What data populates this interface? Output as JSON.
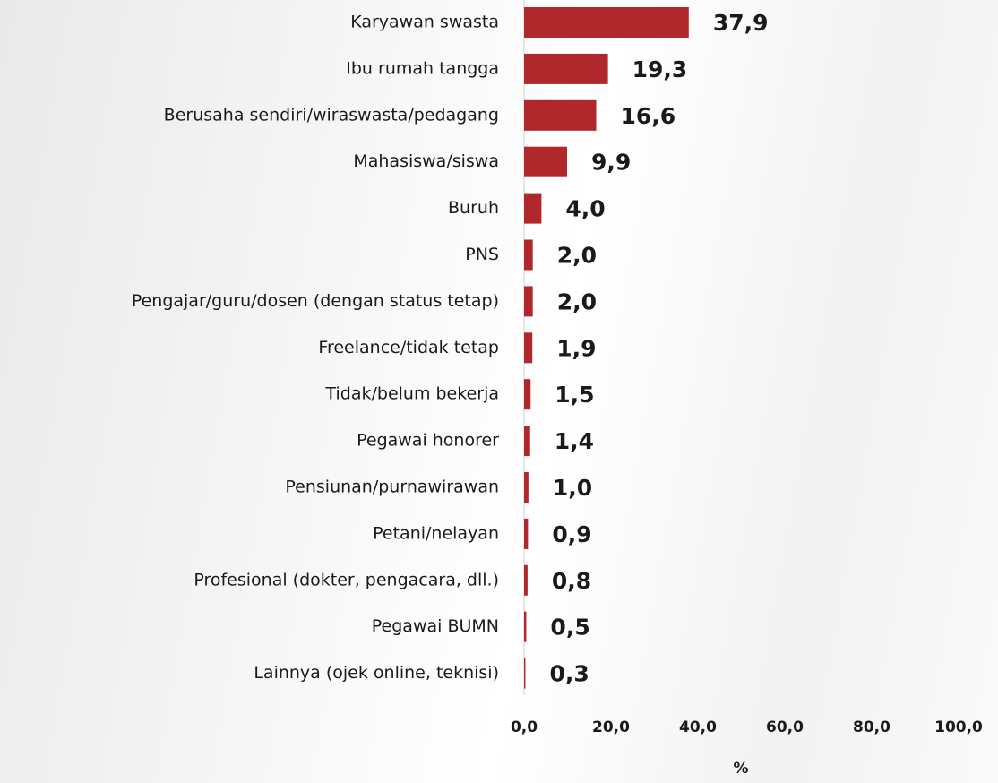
{
  "chart_data": {
    "type": "bar",
    "orientation": "horizontal",
    "x_label": "%",
    "categories": [
      "Karyawan swasta",
      "Ibu rumah tangga",
      "Berusaha sendiri/wiraswasta/pedagang",
      "Mahasiswa/siswa",
      "Buruh",
      "PNS",
      "Pengajar/guru/dosen (dengan status tetap)",
      "Freelance/tidak tetap",
      "Tidak/belum bekerja",
      "Pegawai honorer",
      "Pensiunan/purnawirawan",
      "Petani/nelayan",
      "Profesional (dokter, pengacara, dll.)",
      "Pegawai BUMN",
      "Lainnya (ojek online, teknisi)"
    ],
    "values": [
      37.9,
      19.3,
      16.6,
      9.9,
      4.0,
      2.0,
      2.0,
      1.9,
      1.5,
      1.4,
      1.0,
      0.9,
      0.8,
      0.5,
      0.3
    ],
    "value_labels": [
      "37,9",
      "19,3",
      "16,6",
      "9,9",
      "4,0",
      "2,0",
      "2,0",
      "1,9",
      "1,5",
      "1,4",
      "1,0",
      "0,9",
      "0,8",
      "0,5",
      "0,3"
    ],
    "color": "#b0282c",
    "xlim": [
      0,
      100
    ],
    "xticks": [
      {
        "value": 0,
        "label": "0,0"
      },
      {
        "value": 20,
        "label": "20,0"
      },
      {
        "value": 40,
        "label": "40,0"
      },
      {
        "value": 60,
        "label": "60,0"
      },
      {
        "value": 80,
        "label": "80,0"
      },
      {
        "value": 100,
        "label": "100,0"
      }
    ]
  }
}
